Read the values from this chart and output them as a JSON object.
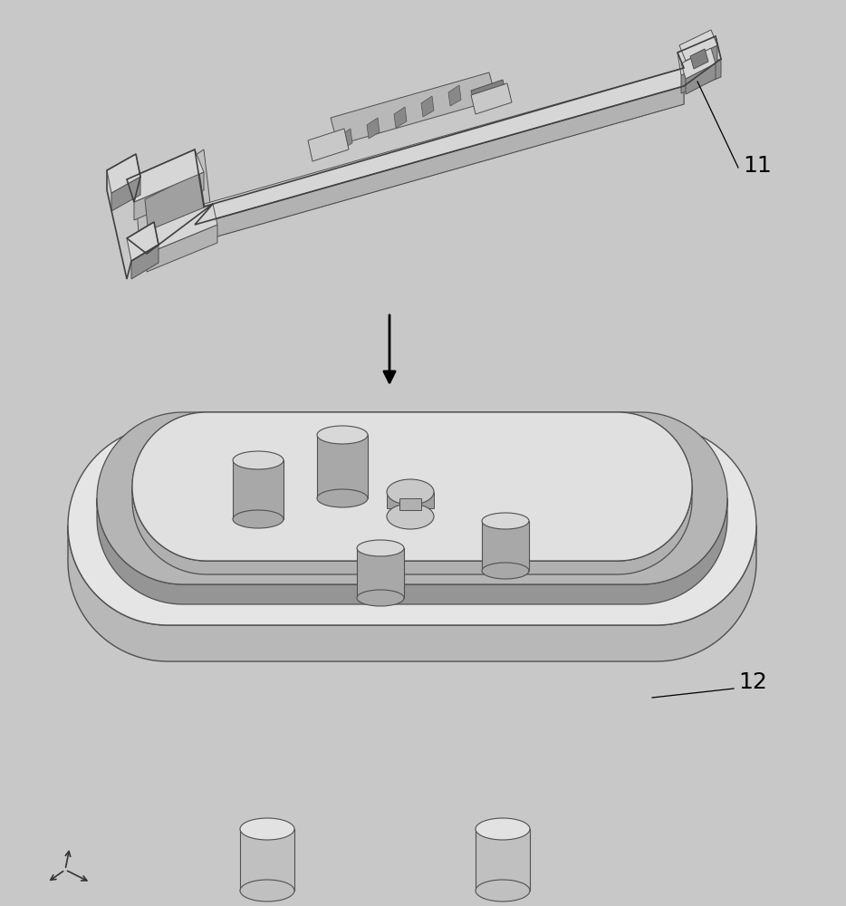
{
  "bg_color": "#c8c8c8",
  "fg_light": "#e2e2e2",
  "fg_mid": "#c0c0c0",
  "fg_dark": "#a0a0a0",
  "fg_darker": "#808080",
  "fg_darkest": "#606060",
  "edge_color": "#505050",
  "label_11": "11",
  "label_12": "12",
  "label_fontsize": 18,
  "arrow_color": "#222222"
}
